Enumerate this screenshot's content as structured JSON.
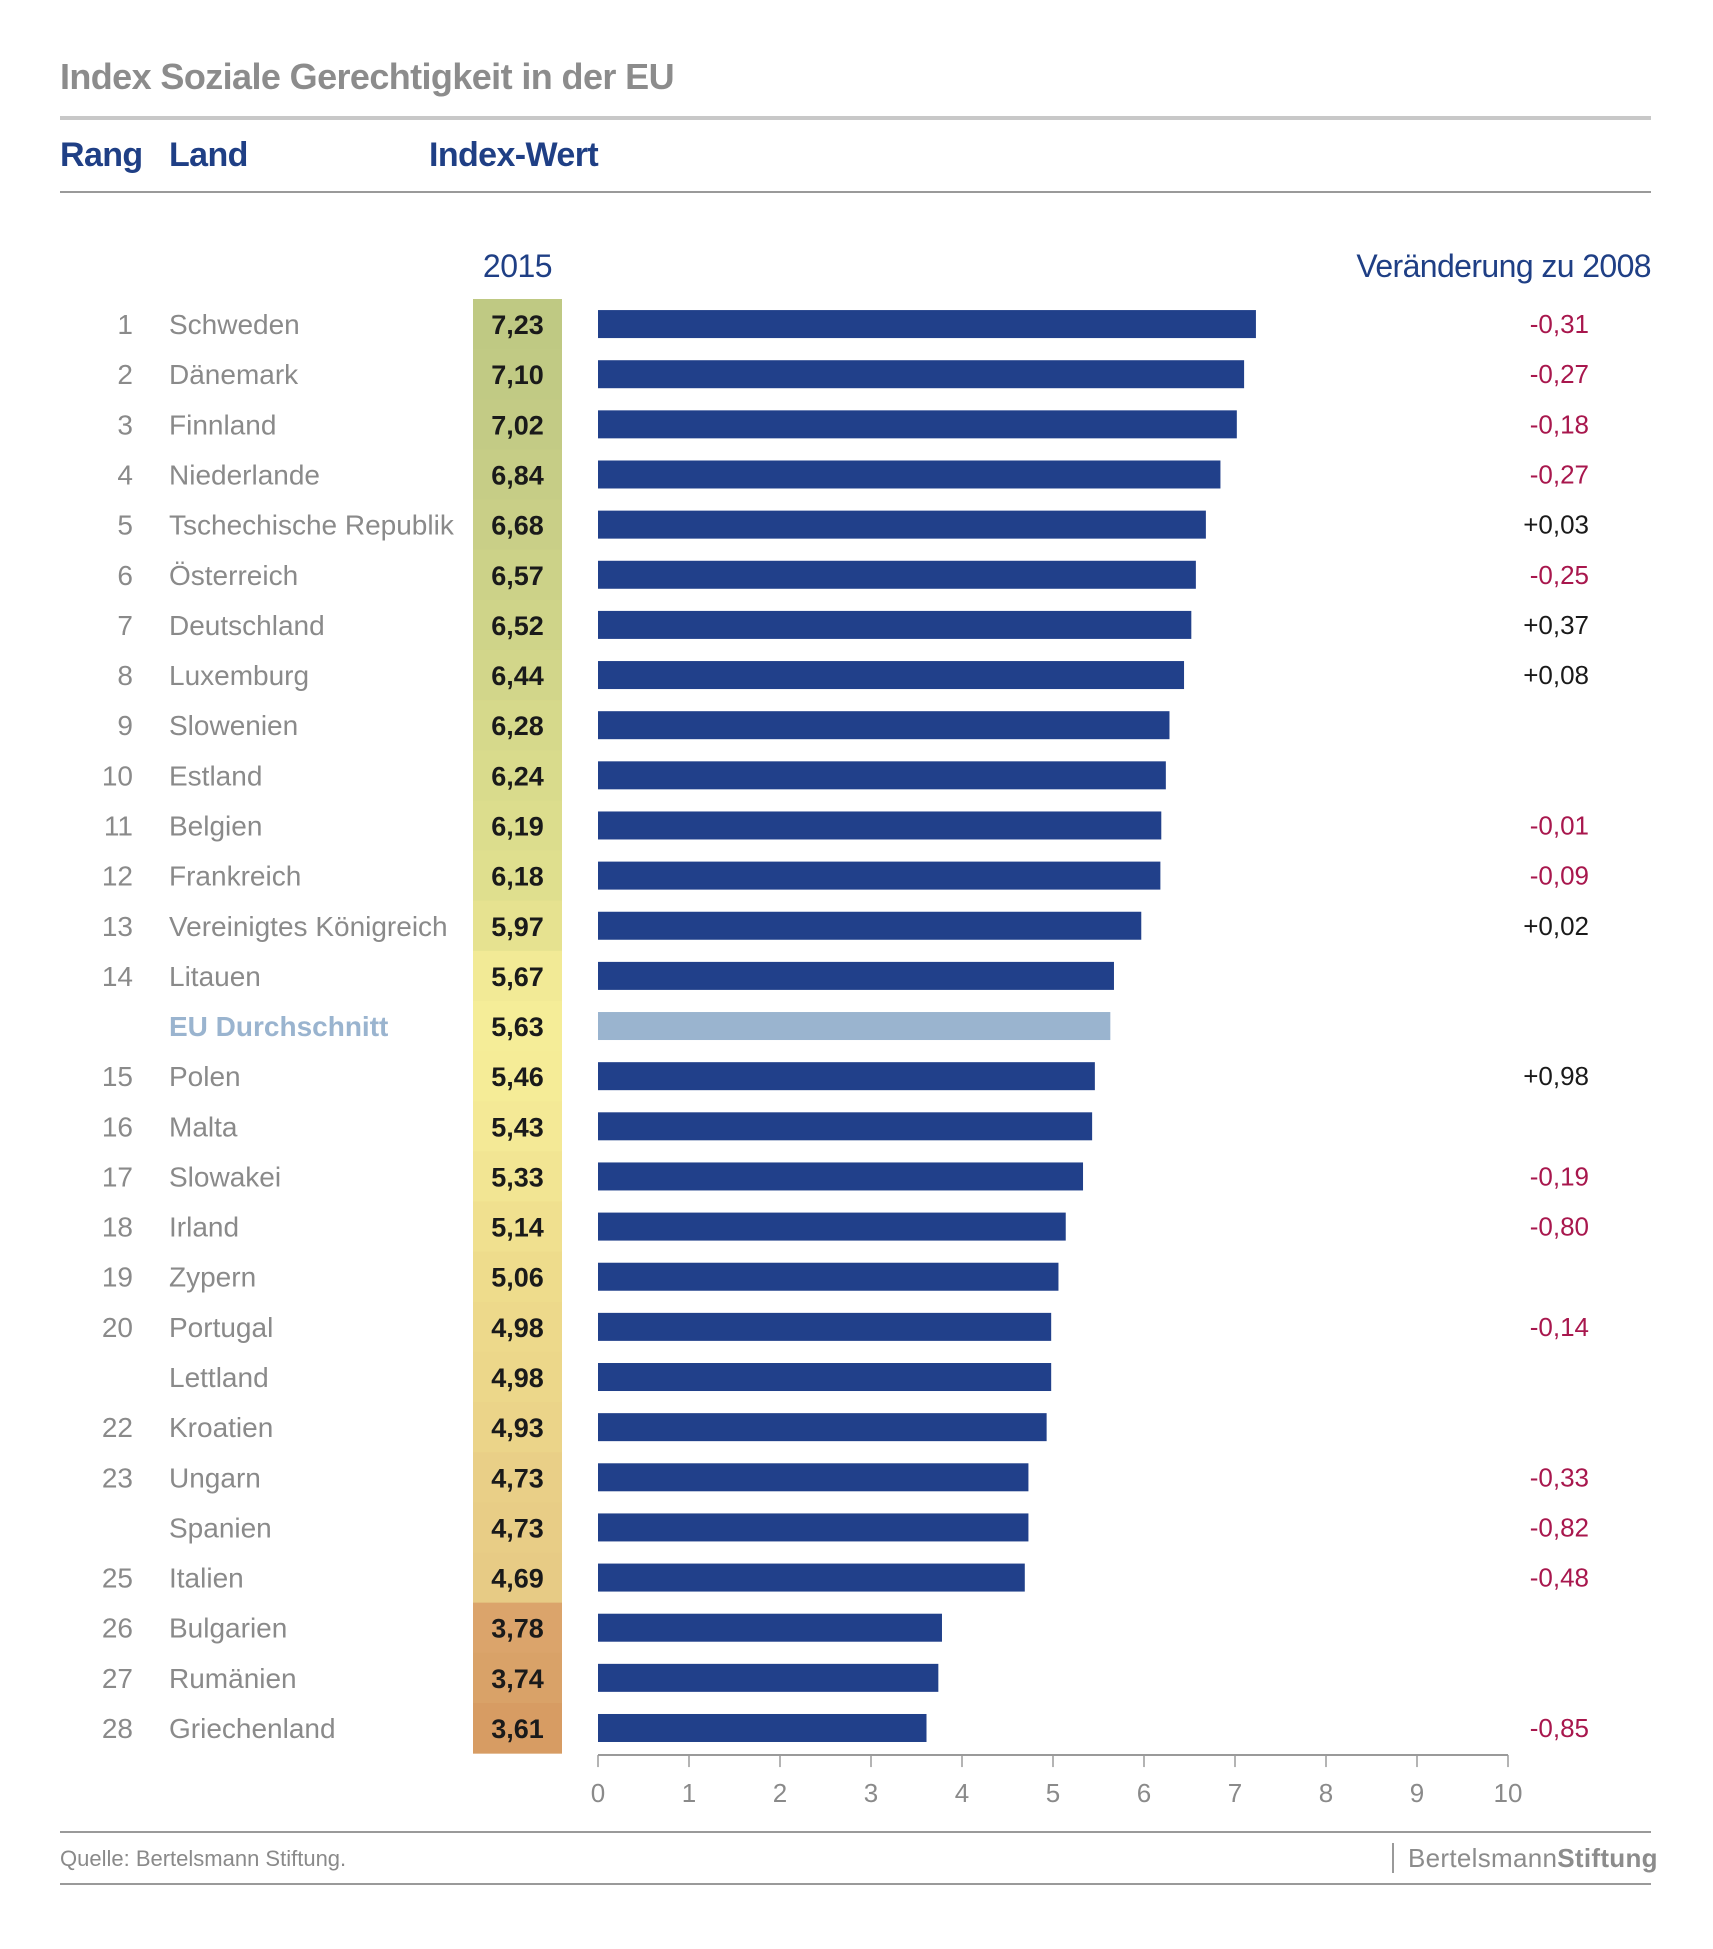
{
  "title": "Index Soziale Gerechtigkeit in der EU",
  "column_headers": {
    "rank": "Rang",
    "country": "Land",
    "index": "Index-Wert",
    "year": "2015",
    "change": "Veränderung zu 2008"
  },
  "colors": {
    "bar": "#21408a",
    "bar_average": "#9ab4cf",
    "negative_change": "#a8174d",
    "positive_change": "#1a1a1a",
    "header_blue": "#1f3f85"
  },
  "footer": {
    "source": "Quelle: Bertelsmann Stiftung.",
    "logo_light": "Bertelsmann",
    "logo_bold": "Stiftung"
  },
  "chart_data": {
    "type": "bar",
    "orientation": "horizontal",
    "title": "Index Soziale Gerechtigkeit in der EU",
    "xlabel": "",
    "ylabel": "",
    "xlim": [
      0,
      10
    ],
    "x_ticks": [
      "0",
      "1",
      "2",
      "3",
      "4",
      "5",
      "6",
      "7",
      "8",
      "9",
      "10"
    ],
    "grid": false,
    "rows": [
      {
        "rank": "1",
        "country": "Schweden",
        "value": 7.23,
        "label": "7,23",
        "change": "-0,31",
        "cell_color": "#bfc983"
      },
      {
        "rank": "2",
        "country": "Dänemark",
        "value": 7.1,
        "label": "7,10",
        "change": "-0,27",
        "cell_color": "#c1ca84"
      },
      {
        "rank": "3",
        "country": "Finnland",
        "value": 7.02,
        "label": "7,02",
        "change": "-0,18",
        "cell_color": "#c3cb85"
      },
      {
        "rank": "4",
        "country": "Niederlande",
        "value": 6.84,
        "label": "6,84",
        "change": "-0,27",
        "cell_color": "#c6cd86"
      },
      {
        "rank": "5",
        "country": "Tschechische Republik",
        "value": 6.68,
        "label": "6,68",
        "change": "+0,03",
        "cell_color": "#c9cf87"
      },
      {
        "rank": "6",
        "country": "Österreich",
        "value": 6.57,
        "label": "6,57",
        "change": "-0,25",
        "cell_color": "#ccd288"
      },
      {
        "rank": "7",
        "country": "Deutschland",
        "value": 6.52,
        "label": "6,52",
        "change": "+0,37",
        "cell_color": "#cfd489"
      },
      {
        "rank": "8",
        "country": "Luxemburg",
        "value": 6.44,
        "label": "6,44",
        "change": "+0,08",
        "cell_color": "#d2d68a"
      },
      {
        "rank": "9",
        "country": "Slowenien",
        "value": 6.28,
        "label": "6,28",
        "change": "",
        "cell_color": "#d6d98b"
      },
      {
        "rank": "10",
        "country": "Estland",
        "value": 6.24,
        "label": "6,24",
        "change": "",
        "cell_color": "#d9db8c"
      },
      {
        "rank": "11",
        "country": "Belgien",
        "value": 6.19,
        "label": "6,19",
        "change": "-0,01",
        "cell_color": "#dcdd8d"
      },
      {
        "rank": "12",
        "country": "Frankreich",
        "value": 6.18,
        "label": "6,18",
        "change": "-0,09",
        "cell_color": "#dfdf8e"
      },
      {
        "rank": "13",
        "country": "Vereinigtes Königreich",
        "value": 5.97,
        "label": "5,97",
        "change": "+0,02",
        "cell_color": "#e6e290"
      },
      {
        "rank": "14",
        "country": "Litauen",
        "value": 5.67,
        "label": "5,67",
        "change": "",
        "cell_color": "#f2ea96"
      },
      {
        "rank": "",
        "country": "EU Durchschnitt",
        "value": 5.63,
        "label": "5,63",
        "change": "",
        "cell_color": "#f5ed98",
        "average": true
      },
      {
        "rank": "15",
        "country": "Polen",
        "value": 5.46,
        "label": "5,46",
        "change": "+0,98",
        "cell_color": "#f5ec97"
      },
      {
        "rank": "16",
        "country": "Malta",
        "value": 5.43,
        "label": "5,43",
        "change": "",
        "cell_color": "#f4e996"
      },
      {
        "rank": "17",
        "country": "Slowakei",
        "value": 5.33,
        "label": "5,33",
        "change": "-0,19",
        "cell_color": "#f2e593"
      },
      {
        "rank": "18",
        "country": "Irland",
        "value": 5.14,
        "label": "5,14",
        "change": "-0,80",
        "cell_color": "#f0e08f"
      },
      {
        "rank": "19",
        "country": "Zypern",
        "value": 5.06,
        "label": "5,06",
        "change": "",
        "cell_color": "#eedc8c"
      },
      {
        "rank": "20",
        "country": "Portugal",
        "value": 4.98,
        "label": "4,98",
        "change": "-0,14",
        "cell_color": "#edd98b"
      },
      {
        "rank": "",
        "country": "Lettland",
        "value": 4.98,
        "label": "4,98",
        "change": "",
        "cell_color": "#ecd78a"
      },
      {
        "rank": "22",
        "country": "Kroatien",
        "value": 4.93,
        "label": "4,93",
        "change": "",
        "cell_color": "#ebd489"
      },
      {
        "rank": "23",
        "country": "Ungarn",
        "value": 4.73,
        "label": "4,73",
        "change": "-0,33",
        "cell_color": "#e9cf87"
      },
      {
        "rank": "",
        "country": "Spanien",
        "value": 4.73,
        "label": "4,73",
        "change": "-0,82",
        "cell_color": "#e8cd86"
      },
      {
        "rank": "25",
        "country": "Italien",
        "value": 4.69,
        "label": "4,69",
        "change": "-0,48",
        "cell_color": "#e7cb85"
      },
      {
        "rank": "26",
        "country": "Bulgarien",
        "value": 3.78,
        "label": "3,78",
        "change": "",
        "cell_color": "#dba46b"
      },
      {
        "rank": "27",
        "country": "Rumänien",
        "value": 3.74,
        "label": "3,74",
        "change": "",
        "cell_color": "#d9a268"
      },
      {
        "rank": "28",
        "country": "Griechenland",
        "value": 3.61,
        "label": "3,61",
        "change": "-0,85",
        "cell_color": "#d79c63"
      }
    ]
  }
}
